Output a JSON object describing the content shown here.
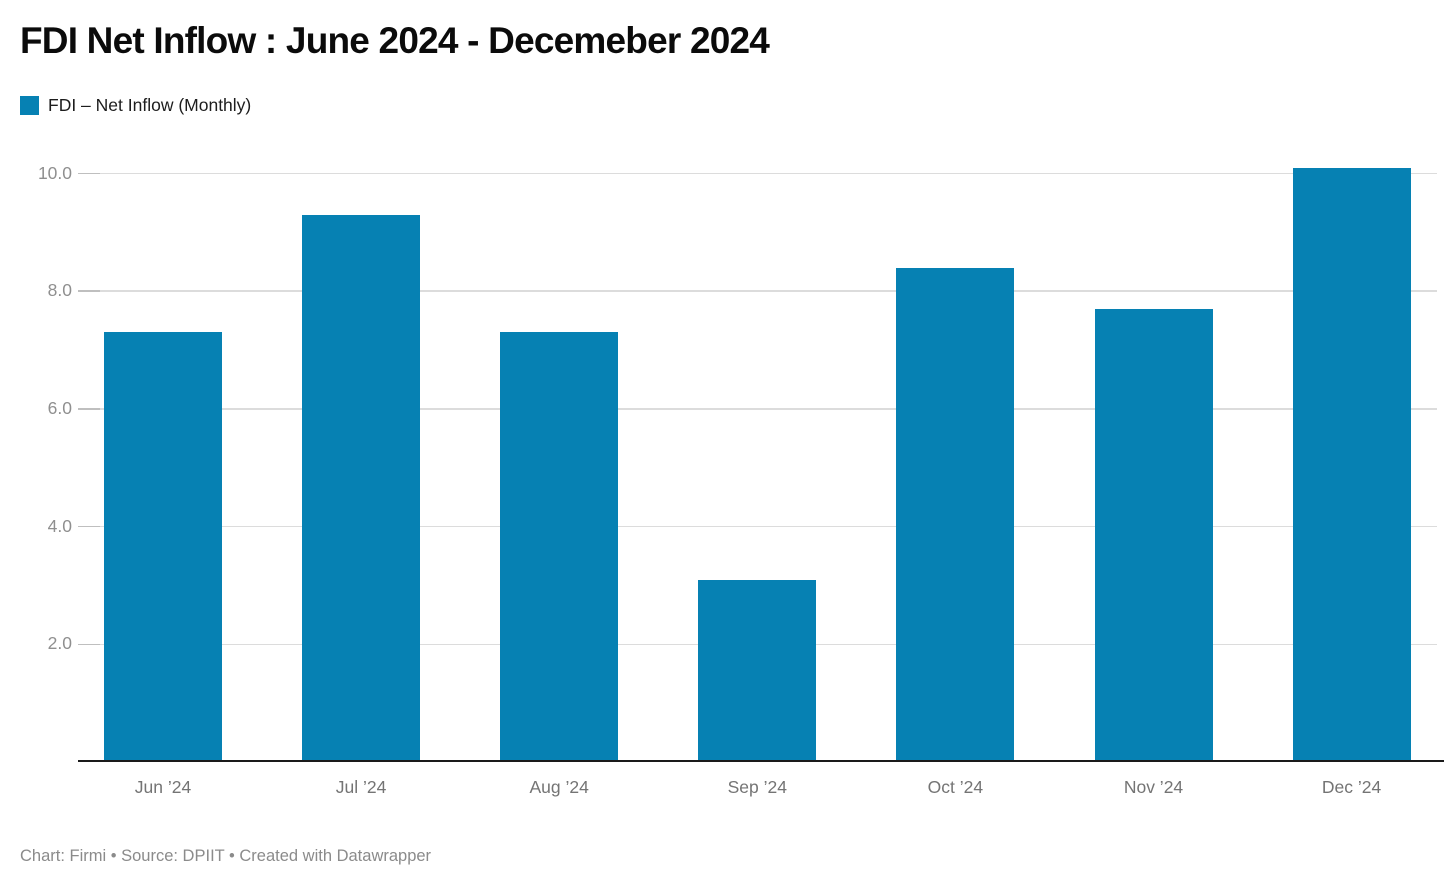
{
  "header": {
    "title": "FDI Net Inflow : June 2024 - Decemeber 2024"
  },
  "legend": {
    "label": "FDI – Net Inflow (Monthly)"
  },
  "footer": {
    "text": "Chart: Firmi • Source: DPIIT • Created with Datawrapper"
  },
  "colors": {
    "bar": "#0681b3",
    "gridline": "#dcdcdc",
    "tick": "#bfbfbf",
    "axis_line": "#1a1a1a",
    "y_label": "#8f8f8f",
    "x_label": "#747474",
    "footer_text": "#8b8b8b",
    "title_text": "#0b0b0b"
  },
  "chart_data": {
    "type": "bar",
    "title": "FDI Net Inflow : June 2024 - Decemeber 2024",
    "series_name": "FDI – Net Inflow (Monthly)",
    "categories": [
      "Jun ’24",
      "Jul ’24",
      "Aug ’24",
      "Sep ’24",
      "Oct ’24",
      "Nov ’24",
      "Dec ’24"
    ],
    "values": [
      7.3,
      9.3,
      7.3,
      3.1,
      8.4,
      7.7,
      10.1
    ],
    "xlabel": "",
    "ylabel": "",
    "y_ticks": [
      2.0,
      4.0,
      6.0,
      8.0,
      10.0
    ],
    "y_tick_labels": [
      "2.0",
      "4.0",
      "6.0",
      "8.0",
      "10.0"
    ],
    "ylim": [
      0,
      10.4
    ],
    "grid": "horizontal",
    "legend_position": "top-left",
    "bar_color": "#0681b3"
  }
}
